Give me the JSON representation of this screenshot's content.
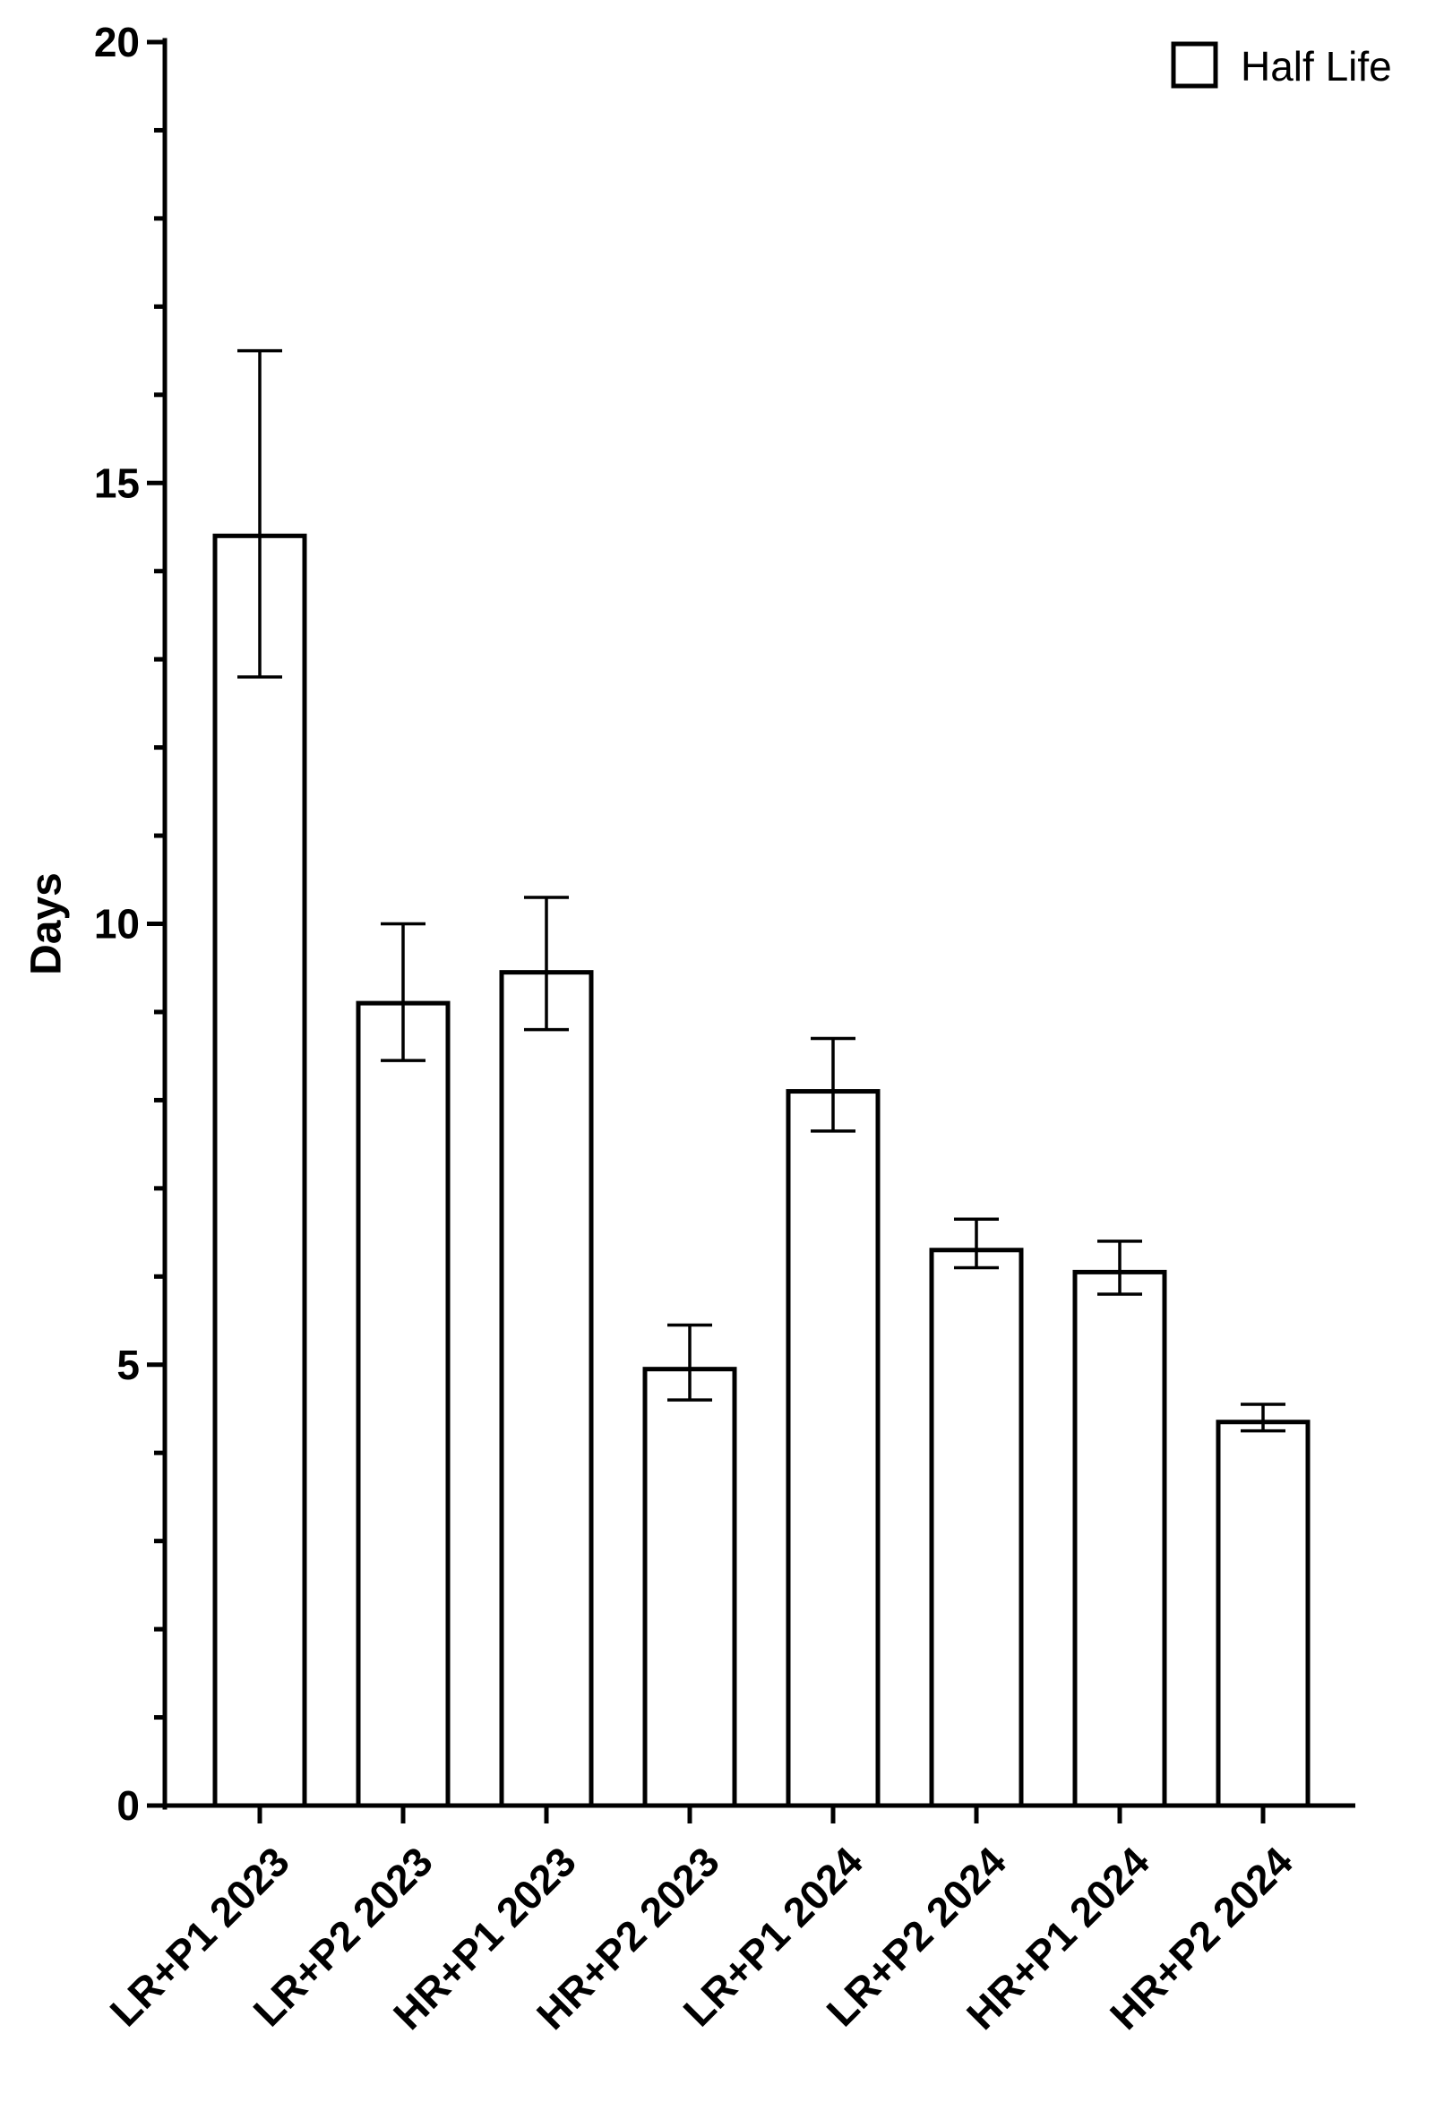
{
  "chart_data": {
    "type": "bar",
    "title": "",
    "xlabel": "",
    "ylabel": "Days",
    "ylim": [
      0,
      20
    ],
    "y_ticks_major": [
      0,
      5,
      10,
      15,
      20
    ],
    "y_tick_labels": [
      "0",
      "5",
      "10",
      "15",
      "20"
    ],
    "y_minor_tick_step": 1,
    "grid": false,
    "legend_position": "top-right",
    "categories": [
      "LR+P1 2023",
      "LR+P2 2023",
      "HR+P1 2023",
      "HR+P2 2023",
      "LR+P1 2024",
      "LR+P2 2024",
      "HR+P1 2024",
      "HR+P2 2024"
    ],
    "series": [
      {
        "name": "Half Life",
        "fill": "#ffffff",
        "stroke": "#000000",
        "values": [
          14.4,
          9.1,
          9.45,
          4.95,
          8.1,
          6.3,
          6.05,
          4.35
        ],
        "error_low": [
          12.8,
          8.45,
          8.8,
          4.6,
          7.65,
          6.1,
          5.8,
          4.25
        ],
        "error_high": [
          16.5,
          10.0,
          10.3,
          5.45,
          8.7,
          6.65,
          6.4,
          4.55
        ]
      }
    ]
  }
}
